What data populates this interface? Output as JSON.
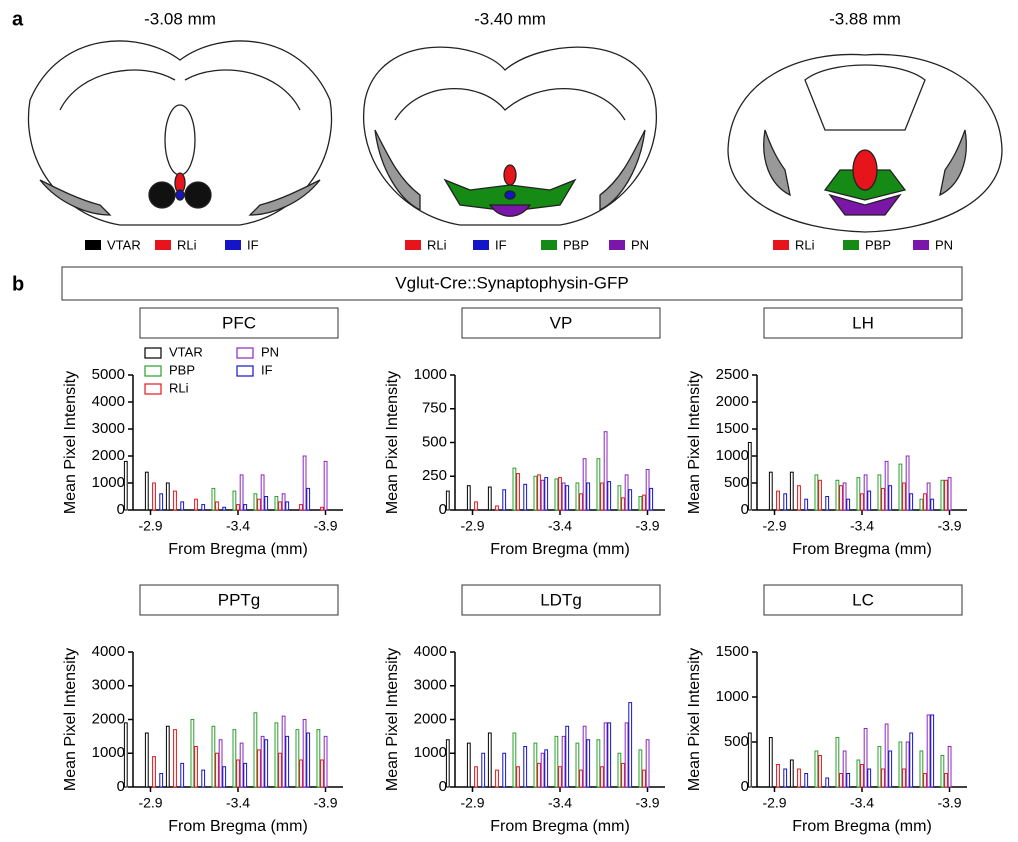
{
  "figure": {
    "panel_labels": [
      "a",
      "b"
    ],
    "sections": [
      {
        "label": "-3.08 mm",
        "legend": [
          {
            "name": "VTAR",
            "color": "#000000"
          },
          {
            "name": "RLi",
            "color": "#e8141b"
          },
          {
            "name": "IF",
            "color": "#1515c8"
          }
        ]
      },
      {
        "label": "-3.40 mm",
        "legend": [
          {
            "name": "RLi",
            "color": "#e8141b"
          },
          {
            "name": "IF",
            "color": "#1515c8"
          },
          {
            "name": "PBP",
            "color": "#158a15"
          },
          {
            "name": "PN",
            "color": "#7a16a8"
          }
        ]
      },
      {
        "label": "-3.88 mm",
        "legend": [
          {
            "name": "RLi",
            "color": "#e8141b"
          },
          {
            "name": "PBP",
            "color": "#158a15"
          },
          {
            "name": "PN",
            "color": "#7a16a8"
          }
        ]
      }
    ],
    "banner": "Vglut-Cre::Synaptophysin-GFP"
  },
  "chart_data": [
    {
      "type": "bar",
      "title": "PFC",
      "ylabel": "Mean Pixel Intensity",
      "xlabel": "From Bregma (mm)",
      "x": [
        -2.8,
        -2.92,
        -3.04,
        -3.16,
        -3.28,
        -3.4,
        -3.52,
        -3.64,
        -3.76,
        -3.88
      ],
      "xlim": [
        -2.8,
        -4.0
      ],
      "xticks": [
        -2.9,
        -3.4,
        -3.9
      ],
      "ylim": [
        0,
        5000
      ],
      "yticks": [
        0,
        1000,
        2000,
        3000,
        4000,
        5000
      ],
      "series": [
        {
          "name": "VTAR",
          "color": "#000000",
          "values": [
            1800,
            1400,
            1000,
            null,
            null,
            null,
            null,
            null,
            null,
            null
          ]
        },
        {
          "name": "PBP",
          "color": "#2aa02a",
          "values": [
            null,
            null,
            null,
            0,
            800,
            700,
            600,
            500,
            null,
            null
          ]
        },
        {
          "name": "RLi",
          "color": "#e8141b",
          "values": [
            0,
            1000,
            700,
            400,
            300,
            200,
            400,
            300,
            200,
            100
          ]
        },
        {
          "name": "PN",
          "color": "#8e24c0",
          "values": [
            null,
            null,
            null,
            null,
            0,
            1300,
            1300,
            600,
            2000,
            1800
          ]
        },
        {
          "name": "IF",
          "color": "#1515c8",
          "values": [
            0,
            600,
            300,
            200,
            100,
            200,
            500,
            300,
            800,
            null
          ]
        }
      ]
    },
    {
      "type": "bar",
      "title": "VP",
      "ylabel": "Mean Pixel Intensity",
      "xlabel": "From Bregma (mm)",
      "x": [
        -2.8,
        -2.92,
        -3.04,
        -3.16,
        -3.28,
        -3.4,
        -3.52,
        -3.64,
        -3.76,
        -3.88
      ],
      "xlim": [
        -2.8,
        -4.0
      ],
      "xticks": [
        -2.9,
        -3.4,
        -3.9
      ],
      "ylim": [
        0,
        1000
      ],
      "yticks": [
        0,
        250,
        500,
        750,
        1000
      ],
      "series": [
        {
          "color": "#000000",
          "values": [
            140,
            180,
            170,
            null,
            null,
            null,
            null,
            null,
            null,
            null
          ]
        },
        {
          "color": "#2aa02a",
          "values": [
            null,
            null,
            null,
            310,
            250,
            230,
            200,
            380,
            180,
            100
          ]
        },
        {
          "color": "#e8141b",
          "values": [
            0,
            60,
            30,
            270,
            260,
            240,
            120,
            200,
            90,
            110
          ]
        },
        {
          "color": "#8e24c0",
          "values": [
            null,
            null,
            null,
            null,
            220,
            200,
            380,
            580,
            260,
            300
          ]
        },
        {
          "color": "#1515c8",
          "values": [
            0,
            0,
            150,
            190,
            240,
            180,
            200,
            210,
            150,
            160
          ]
        }
      ]
    },
    {
      "type": "bar",
      "title": "LH",
      "ylabel": "Mean Pixel Intensity",
      "xlabel": "From Bregma (mm)",
      "x": [
        -2.8,
        -2.92,
        -3.04,
        -3.16,
        -3.28,
        -3.4,
        -3.52,
        -3.64,
        -3.76,
        -3.88
      ],
      "xlim": [
        -2.8,
        -4.0
      ],
      "xticks": [
        -2.9,
        -3.4,
        -3.9
      ],
      "ylim": [
        0,
        2500
      ],
      "yticks": [
        0,
        500,
        1000,
        1500,
        2000,
        2500
      ],
      "series": [
        {
          "color": "#000000",
          "values": [
            1250,
            700,
            700,
            null,
            null,
            null,
            null,
            null,
            null,
            null
          ]
        },
        {
          "color": "#2aa02a",
          "values": [
            null,
            null,
            null,
            650,
            550,
            600,
            650,
            850,
            200,
            550
          ]
        },
        {
          "color": "#e8141b",
          "values": [
            0,
            350,
            450,
            550,
            450,
            300,
            400,
            500,
            300,
            550
          ]
        },
        {
          "color": "#8e24c0",
          "values": [
            null,
            null,
            null,
            null,
            500,
            650,
            900,
            1000,
            500,
            600
          ]
        },
        {
          "color": "#1515c8",
          "values": [
            0,
            300,
            200,
            250,
            200,
            350,
            450,
            300,
            200,
            null
          ]
        }
      ]
    },
    {
      "type": "bar",
      "title": "PPTg",
      "ylabel": "Mean Pixel Intensity",
      "xlabel": "From Bregma (mm)",
      "x": [
        -2.8,
        -2.92,
        -3.04,
        -3.16,
        -3.28,
        -3.4,
        -3.52,
        -3.64,
        -3.76,
        -3.88
      ],
      "xlim": [
        -2.8,
        -4.0
      ],
      "xticks": [
        -2.9,
        -3.4,
        -3.9
      ],
      "ylim": [
        0,
        4000
      ],
      "yticks": [
        0,
        1000,
        2000,
        3000,
        4000
      ],
      "series": [
        {
          "color": "#000000",
          "values": [
            1900,
            1600,
            1800,
            null,
            null,
            null,
            null,
            null,
            null,
            null
          ]
        },
        {
          "color": "#2aa02a",
          "values": [
            null,
            null,
            null,
            2000,
            1800,
            1700,
            2200,
            1900,
            1700,
            1700
          ]
        },
        {
          "color": "#e8141b",
          "values": [
            0,
            900,
            1700,
            1200,
            1000,
            800,
            1100,
            1000,
            800,
            800
          ]
        },
        {
          "color": "#8e24c0",
          "values": [
            null,
            null,
            null,
            null,
            1400,
            1300,
            1500,
            2100,
            2000,
            1500
          ]
        },
        {
          "color": "#1515c8",
          "values": [
            0,
            400,
            700,
            500,
            600,
            700,
            1400,
            1500,
            1600,
            null
          ]
        }
      ]
    },
    {
      "type": "bar",
      "title": "LDTg",
      "ylabel": "Mean Pixel Intensity",
      "xlabel": "From Bregma (mm)",
      "x": [
        -2.8,
        -2.92,
        -3.04,
        -3.16,
        -3.28,
        -3.4,
        -3.52,
        -3.64,
        -3.76,
        -3.88
      ],
      "xlim": [
        -2.8,
        -4.0
      ],
      "xticks": [
        -2.9,
        -3.4,
        -3.9
      ],
      "ylim": [
        0,
        4000
      ],
      "yticks": [
        0,
        1000,
        2000,
        3000,
        4000
      ],
      "series": [
        {
          "color": "#000000",
          "values": [
            1400,
            1300,
            1600,
            null,
            null,
            null,
            null,
            null,
            null,
            null
          ]
        },
        {
          "color": "#2aa02a",
          "values": [
            null,
            null,
            null,
            1600,
            1300,
            1500,
            1300,
            1400,
            1000,
            1100
          ]
        },
        {
          "color": "#e8141b",
          "values": [
            0,
            600,
            500,
            600,
            700,
            600,
            500,
            600,
            700,
            500
          ]
        },
        {
          "color": "#8e24c0",
          "values": [
            null,
            null,
            null,
            null,
            1000,
            1500,
            1800,
            1900,
            1900,
            1400
          ]
        },
        {
          "color": "#1515c8",
          "values": [
            0,
            1000,
            1000,
            1200,
            1100,
            1800,
            1400,
            1900,
            2500,
            null
          ]
        }
      ]
    },
    {
      "type": "bar",
      "title": "LC",
      "ylabel": "Mean Pixel Intensity",
      "xlabel": "From Bregma (mm)",
      "x": [
        -2.8,
        -2.92,
        -3.04,
        -3.16,
        -3.28,
        -3.4,
        -3.52,
        -3.64,
        -3.76,
        -3.88
      ],
      "xlim": [
        -2.8,
        -4.0
      ],
      "xticks": [
        -2.9,
        -3.4,
        -3.9
      ],
      "ylim": [
        0,
        1500
      ],
      "yticks": [
        0,
        500,
        1000,
        1500
      ],
      "series": [
        {
          "color": "#000000",
          "values": [
            600,
            550,
            300,
            null,
            null,
            null,
            null,
            null,
            null,
            null
          ]
        },
        {
          "color": "#2aa02a",
          "values": [
            null,
            null,
            null,
            400,
            550,
            300,
            450,
            500,
            400,
            350
          ]
        },
        {
          "color": "#e8141b",
          "values": [
            0,
            250,
            200,
            350,
            150,
            250,
            200,
            200,
            150,
            150
          ]
        },
        {
          "color": "#8e24c0",
          "values": [
            null,
            null,
            null,
            null,
            400,
            650,
            700,
            500,
            800,
            450
          ]
        },
        {
          "color": "#1515c8",
          "values": [
            0,
            200,
            150,
            100,
            150,
            200,
            400,
            600,
            800,
            null
          ]
        }
      ]
    }
  ]
}
